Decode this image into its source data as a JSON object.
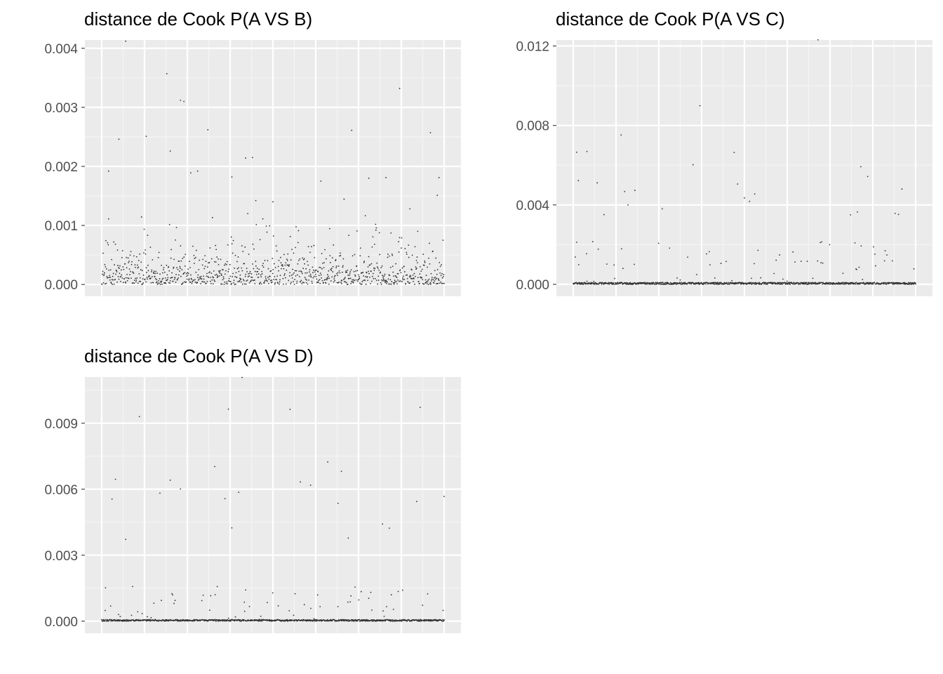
{
  "chart_data": [
    {
      "type": "scatter",
      "title": "distance de Cook P(A VS B)",
      "xlim": [
        0,
        1000
      ],
      "ylim": [
        -0.0002,
        0.00414
      ],
      "yticks": [
        0,
        0.001,
        0.002,
        0.003,
        0.004
      ],
      "ytick_labels": [
        "0.000",
        "0.001",
        "0.002",
        "0.003",
        "0.004"
      ],
      "n_points": 1000,
      "point_color": "#333333",
      "grid": true,
      "outliers": [
        [
          70,
          0.00412
        ],
        [
          190,
          0.00357
        ],
        [
          230,
          0.00312
        ],
        [
          240,
          0.0031
        ],
        [
          870,
          0.00332
        ],
        [
          310,
          0.00262
        ],
        [
          730,
          0.00261
        ],
        [
          960,
          0.00257
        ],
        [
          50,
          0.00246
        ],
        [
          130,
          0.00251
        ],
        [
          200,
          0.00226
        ],
        [
          420,
          0.00214
        ],
        [
          440,
          0.00215
        ],
        [
          20,
          0.00192
        ],
        [
          260,
          0.00189
        ],
        [
          280,
          0.00192
        ],
        [
          380,
          0.00182
        ],
        [
          780,
          0.0018
        ],
        [
          830,
          0.00181
        ],
        [
          985,
          0.00181
        ],
        [
          640,
          0.00175
        ],
        [
          980,
          0.00151
        ],
        [
          900,
          0.00128
        ],
        [
          450,
          0.00142
        ],
        [
          500,
          0.0014
        ]
      ]
    },
    {
      "type": "scatter",
      "title": "distance de Cook P(A VS C)",
      "xlim": [
        0,
        1000
      ],
      "ylim": [
        -0.0006,
        0.0123
      ],
      "yticks": [
        0,
        0.004,
        0.008,
        0.012
      ],
      "ytick_labels": [
        "0.000",
        "0.004",
        "0.008",
        "0.012"
      ],
      "n_points": 1000,
      "point_color": "#333333",
      "grid": true,
      "outliers": [
        [
          715,
          0.01231
        ],
        [
          370,
          0.00899
        ],
        [
          140,
          0.00752
        ],
        [
          10,
          0.00665
        ],
        [
          40,
          0.00669
        ],
        [
          470,
          0.00664
        ],
        [
          350,
          0.00602
        ],
        [
          840,
          0.00592
        ],
        [
          860,
          0.00543
        ],
        [
          15,
          0.00522
        ],
        [
          70,
          0.00511
        ],
        [
          480,
          0.00505
        ],
        [
          960,
          0.0048
        ],
        [
          150,
          0.00467
        ],
        [
          180,
          0.00473
        ],
        [
          530,
          0.00455
        ],
        [
          500,
          0.00435
        ],
        [
          515,
          0.00418
        ],
        [
          160,
          0.004
        ],
        [
          260,
          0.0038
        ],
        [
          830,
          0.00364
        ],
        [
          940,
          0.00357
        ],
        [
          810,
          0.0035
        ],
        [
          950,
          0.00352
        ],
        [
          90,
          0.00351
        ]
      ]
    },
    {
      "type": "scatter",
      "title": "distance de Cook P(A VS D)",
      "xlim": [
        0,
        1000
      ],
      "ylim": [
        -0.00055,
        0.0111
      ],
      "yticks": [
        0,
        0.003,
        0.006,
        0.009
      ],
      "ytick_labels": [
        "0.000",
        "0.003",
        "0.006",
        "0.009"
      ],
      "n_points": 1000,
      "point_color": "#333333",
      "grid": true,
      "outliers": [
        [
          410,
          0.01108
        ],
        [
          370,
          0.00964
        ],
        [
          550,
          0.00963
        ],
        [
          930,
          0.00972
        ],
        [
          110,
          0.0093
        ],
        [
          660,
          0.00724
        ],
        [
          330,
          0.00703
        ],
        [
          700,
          0.00681
        ],
        [
          40,
          0.00645
        ],
        [
          200,
          0.00641
        ],
        [
          230,
          0.00601
        ],
        [
          580,
          0.00633
        ],
        [
          610,
          0.00618
        ],
        [
          30,
          0.00555
        ],
        [
          170,
          0.00582
        ],
        [
          360,
          0.00557
        ],
        [
          1000,
          0.00567
        ],
        [
          400,
          0.00586
        ],
        [
          690,
          0.00536
        ],
        [
          920,
          0.00544
        ],
        [
          380,
          0.00424
        ],
        [
          820,
          0.00442
        ],
        [
          840,
          0.00423
        ],
        [
          70,
          0.00372
        ],
        [
          720,
          0.00378
        ]
      ]
    }
  ]
}
